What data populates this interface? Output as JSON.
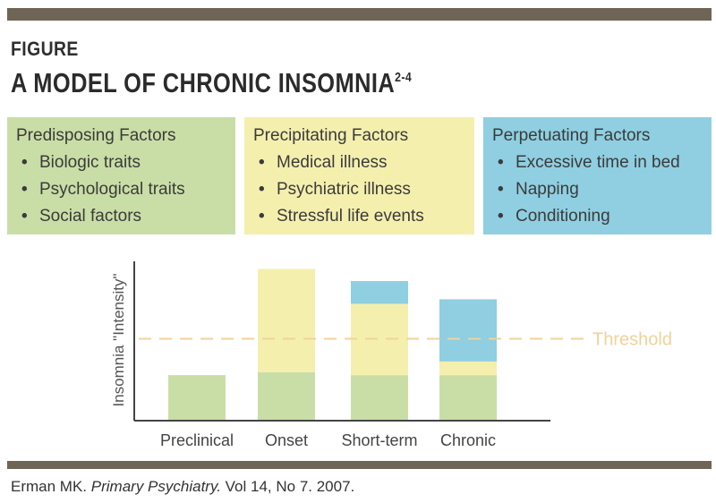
{
  "figure": {
    "label": "FIGURE",
    "title": "A MODEL OF CHRONIC INSOMNIA",
    "title_superscript": "2-4"
  },
  "colors": {
    "rule": "#6f6556",
    "predisposing": "#c9dea6",
    "precipitating": "#f5efae",
    "perpetuating": "#8fcfe1",
    "threshold": "#f0d29a",
    "axis": "#444444"
  },
  "factors": [
    {
      "title": "Predisposing Factors",
      "items": [
        "Biologic traits",
        "Psychological traits",
        "Social factors"
      ]
    },
    {
      "title": "Precipitating Factors",
      "items": [
        "Medical illness",
        "Psychiatric illness",
        "Stressful life events"
      ]
    },
    {
      "title": "Perpetuating Factors",
      "items": [
        "Excessive time in bed",
        "Napping",
        "Conditioning"
      ]
    }
  ],
  "chart_data": {
    "type": "bar",
    "stacked": true,
    "ylabel": "Insomnia \"Intensity\"",
    "categories": [
      "Preclinical",
      "Onset",
      "Short-term",
      "Chronic"
    ],
    "series": [
      {
        "name": "Predisposing Factors",
        "values": [
          0.3,
          0.32,
          0.3,
          0.3
        ]
      },
      {
        "name": "Precipitating Factors",
        "values": [
          0,
          0.68,
          0.47,
          0.09
        ]
      },
      {
        "name": "Perpetuating Factors",
        "values": [
          0,
          0,
          0.15,
          0.41
        ]
      }
    ],
    "threshold": {
      "label": "Threshold",
      "value": 0.54
    },
    "ylim": [
      0,
      1.05
    ],
    "grid": false
  },
  "citation": {
    "author": "Erman MK.",
    "journal": "Primary Psychiatry.",
    "details": "Vol 14, No 7. 2007."
  }
}
